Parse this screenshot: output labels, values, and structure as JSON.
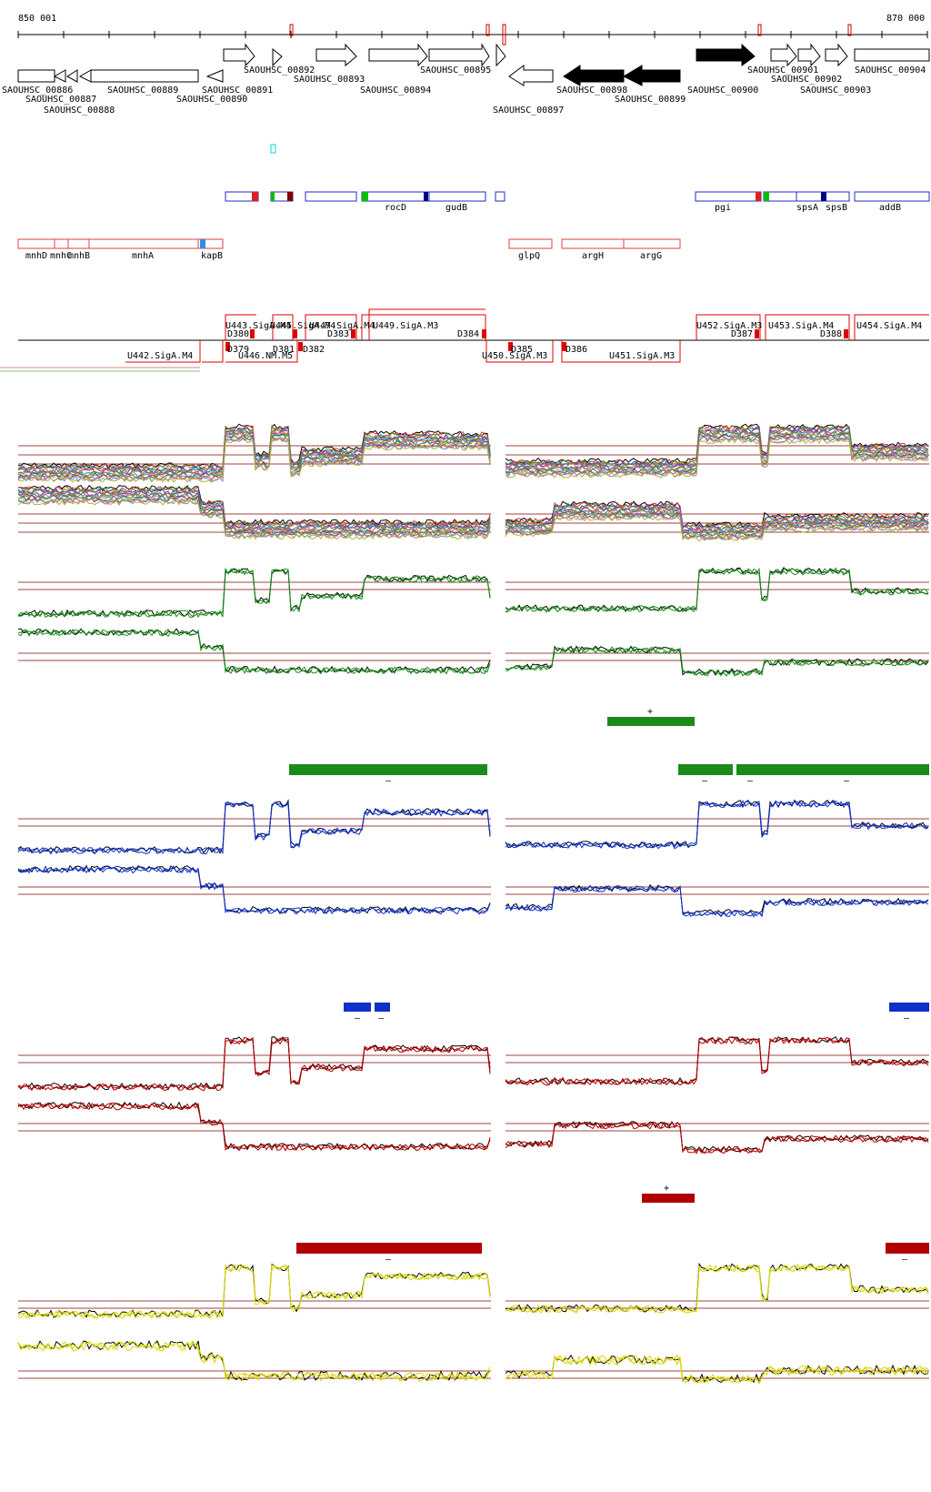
{
  "axis": {
    "start_label": "850 001",
    "end_label": "870 000"
  },
  "genes_row1": [
    "SAOUHSC_00892",
    "SAOUHSC_00893",
    "SAOUHSC_00895",
    "SAOUHSC_00901",
    "SAOUHSC_00904"
  ],
  "genes_row2": [
    "SAOUHSC_00886",
    "SAOUHSC_00889",
    "SAOUHSC_00891",
    "SAOUHSC_00898",
    "SAOUHSC_00900",
    "SAOUHSC_00902"
  ],
  "genes_row3": [
    "SAOUHSC_00887",
    "SAOUHSC_00890",
    "SAOUHSC_00894",
    "SAOUHSC_00899",
    "SAOUHSC_00903"
  ],
  "genes_row4": [
    "SAOUHSC_00888",
    "SAOUHSC_00897"
  ],
  "blue_genes": [
    "rocD",
    "gudB",
    "pgi",
    "spsA",
    "spsB",
    "addB"
  ],
  "red_genes": [
    "mnhD",
    "mnhC",
    "mnhB",
    "mnhA",
    "kapB",
    "glpQ",
    "argH",
    "argG"
  ],
  "transcription_units_top": [
    "U443.SigA.M4",
    "U445.SigA.M4",
    "U447.SigA.M4",
    "U449.SigA.M3",
    "U452.SigA.M3",
    "U453.SigA.M4",
    "U454.SigA.M4"
  ],
  "transcription_units_bottom": [
    "U442.SigA.M4",
    "U446.NM.M5",
    "U450.SigA.M3",
    "U451.SigA.M3"
  ],
  "downshifts": [
    "D379",
    "D380",
    "D381",
    "D382",
    "D383",
    "D384",
    "D385",
    "D386",
    "D387",
    "D388"
  ],
  "sign_plus": "+",
  "sign_minus": "–",
  "colors": {
    "axis": "#000000",
    "gene_outline": "#000000",
    "gene_filled": "#000000",
    "blue_box": "#1c2fc8",
    "red_box": "#e0403a",
    "tu_red": "#e00000",
    "threshold": "#a04040",
    "green": "#1a8a1a",
    "blue": "#1030c8",
    "dark_red": "#b00000",
    "yellow": "#d8d800",
    "cyan": "#00d8d8",
    "green_marker": "#00c000",
    "navy_marker": "#000080",
    "dark_marker": "#800000"
  }
}
